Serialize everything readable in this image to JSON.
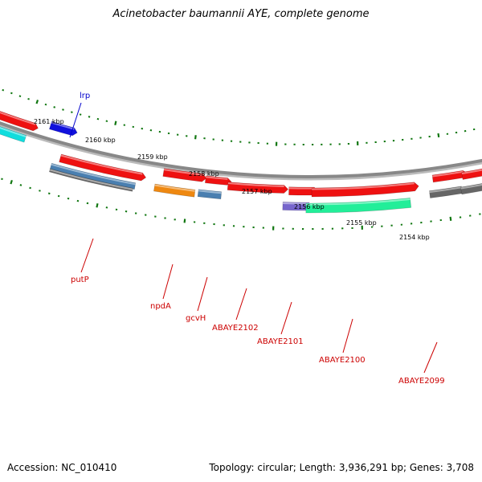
{
  "title": "Acinetobacter baumannii AYE, complete genome",
  "footer": {
    "accession": "Accession: NC_010410",
    "topology": "Topology: circular; Length: 3,936,291 bp; Genes: 3,708"
  },
  "ruler": [
    "2161 kbp",
    "2160 kbp",
    "2159 kbp",
    "2158 kbp",
    "2157 kbp",
    "2156 kbp",
    "2155 kbp",
    "2154 kbp"
  ],
  "gene_labels": [
    {
      "text": "lrp",
      "color": "#0000cc"
    },
    {
      "text": "putP",
      "color": "#cc0000"
    },
    {
      "text": "npdA",
      "color": "#cc0000"
    },
    {
      "text": "gcvH",
      "color": "#cc0000"
    },
    {
      "text": "ABAYE2102",
      "color": "#cc0000"
    },
    {
      "text": "ABAYE2101",
      "color": "#cc0000"
    },
    {
      "text": "ABAYE2100",
      "color": "#cc0000"
    },
    {
      "text": "ABAYE2099",
      "color": "#cc0000"
    }
  ],
  "colors": {
    "red": "#ee1111",
    "blue": "#1111dd",
    "steel": "#4a7fb0",
    "orange": "#ee8811",
    "purple": "#7766cc",
    "teal": "#22ee99",
    "cyan": "#11dddd",
    "grey": "#666666",
    "backbone": "#888888",
    "ticks": "#117711"
  }
}
